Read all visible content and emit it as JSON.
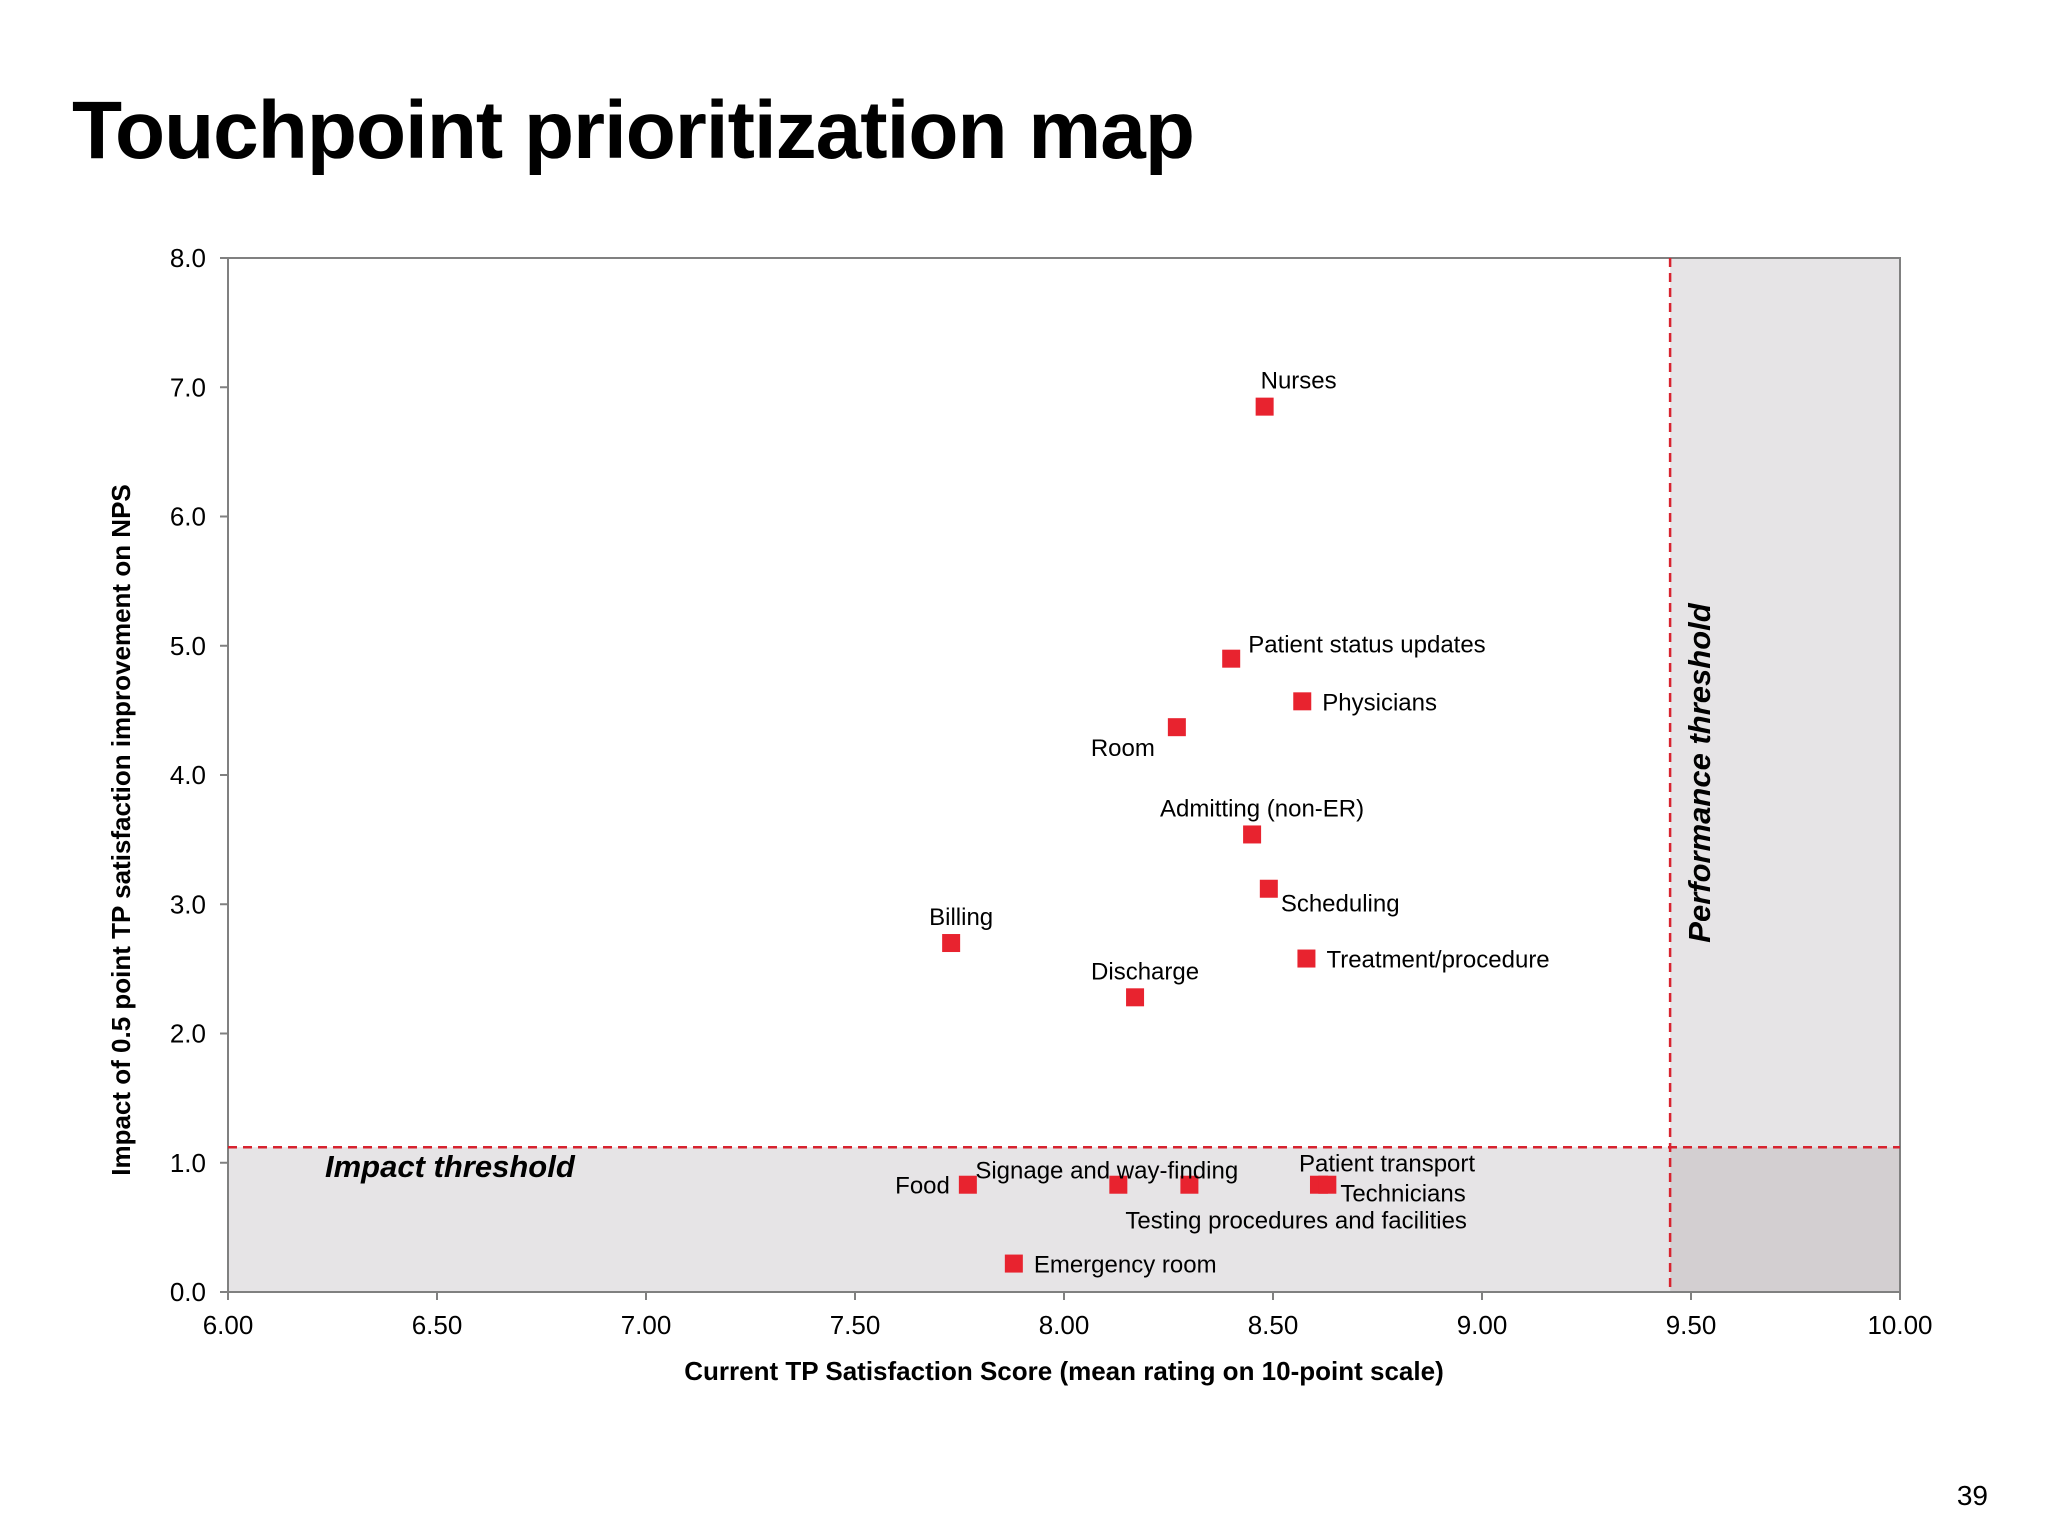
{
  "slide": {
    "title": "Touchpoint prioritization map",
    "page_number": "39"
  },
  "colors": {
    "marker": "#e8232f",
    "threshold_line": "#d8232f",
    "shaded_region": "#e6e4e6",
    "corner_region": "#d3cfd1",
    "axis": "#808080"
  },
  "chart_data": {
    "type": "scatter",
    "title": "",
    "xlabel": "Current TP Satisfaction Score (mean rating on 10-point scale)",
    "ylabel": "Impact of 0.5 point TP satisfaction improvement on NPS",
    "xlim": [
      6.0,
      10.0
    ],
    "ylim": [
      0.0,
      8.0
    ],
    "x_ticks": [
      "6.00",
      "6.50",
      "7.00",
      "7.50",
      "8.00",
      "8.50",
      "9.00",
      "9.50",
      "10.00"
    ],
    "y_ticks": [
      "0.0",
      "1.0",
      "2.0",
      "3.0",
      "4.0",
      "5.0",
      "6.0",
      "7.0",
      "8.0"
    ],
    "grid": false,
    "legend": "none",
    "thresholds": {
      "impact": {
        "value": 1.12,
        "label": "Impact threshold"
      },
      "performance": {
        "value": 9.45,
        "label": "Performance threshold"
      }
    },
    "points": [
      {
        "label": "Nurses",
        "x": 8.48,
        "y": 6.85,
        "label_pos": "above"
      },
      {
        "label": "Patient status updates",
        "x": 8.4,
        "y": 4.9,
        "label_pos": "right-up"
      },
      {
        "label": "Physicians",
        "x": 8.57,
        "y": 4.57,
        "label_pos": "right"
      },
      {
        "label": "Room",
        "x": 8.27,
        "y": 4.37,
        "label_pos": "below-left"
      },
      {
        "label": "Admitting (non-ER)",
        "x": 8.45,
        "y": 3.54,
        "label_pos": "above"
      },
      {
        "label": "Scheduling",
        "x": 8.49,
        "y": 3.12,
        "label_pos": "right-down"
      },
      {
        "label": "Billing",
        "x": 7.73,
        "y": 2.7,
        "label_pos": "above"
      },
      {
        "label": "Treatment/procedure",
        "x": 8.58,
        "y": 2.58,
        "label_pos": "right"
      },
      {
        "label": "Discharge",
        "x": 8.17,
        "y": 2.28,
        "label_pos": "above"
      },
      {
        "label": "Food",
        "x": 7.77,
        "y": 0.83,
        "label_pos": "left"
      },
      {
        "label": "Signage and way-finding",
        "x": 8.13,
        "y": 0.83,
        "label_pos": "signage"
      },
      {
        "label": "Testing procedures and facilities",
        "x": 8.3,
        "y": 0.83,
        "label_pos": "testing"
      },
      {
        "label": "Patient transport",
        "x": 8.61,
        "y": 0.83,
        "label_pos": "transport"
      },
      {
        "label": "Technicians",
        "x": 8.63,
        "y": 0.83,
        "label_pos": "technicians"
      },
      {
        "label": "Emergency room",
        "x": 7.88,
        "y": 0.22,
        "label_pos": "right"
      }
    ]
  }
}
